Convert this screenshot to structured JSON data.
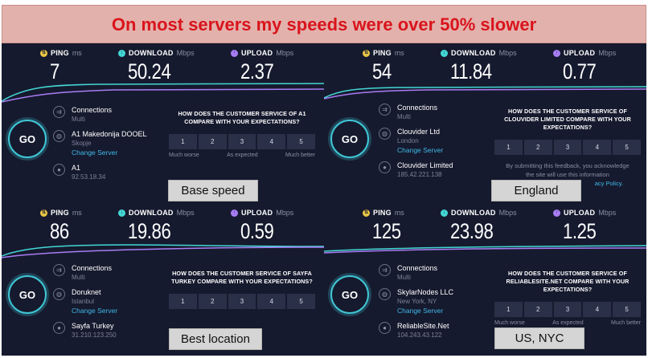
{
  "banner": {
    "title": "On most servers my speeds were over 50% slower"
  },
  "labels": {
    "ping": "PING",
    "ping_unit": "ms",
    "download": "DOWNLOAD",
    "download_unit": "Mbps",
    "upload": "UPLOAD",
    "upload_unit": "Mbps",
    "go": "GO",
    "connections": "Connections",
    "multi": "Multi",
    "change_server": "Change Server",
    "much_worse": "Much worse",
    "as_expected": "As expected",
    "much_better": "Much better",
    "ratings": [
      "1",
      "2",
      "3",
      "4",
      "5"
    ]
  },
  "panels": [
    {
      "ping": "7",
      "download": "50.24",
      "upload": "2.37",
      "isp": "A1 Makedonija DOOEL",
      "isp_location": "Skopje",
      "server": "Skopje",
      "host": "A1",
      "host_ip": "92.53.18.34",
      "question": "HOW DOES THE CUSTOMER SERVICE OF A1 COMPARE WITH YOUR EXPECTATIONS?",
      "caption": "Base speed"
    },
    {
      "ping": "54",
      "download": "11.84",
      "upload": "0.77",
      "isp": "Clouvider Ltd",
      "isp_location": "London",
      "host": "Clouvider Limited",
      "host_ip": "185.42.221.138",
      "question": "HOW DOES THE CUSTOMER SERVICE OF CLOUVIDER LIMITED COMPARE WITH YOUR EXPECTATIONS?",
      "feedback": "By submitting this feedback, you acknowledge",
      "feedback2": "the site will use this information",
      "feedback_link": "acy Policy.",
      "caption": "England"
    },
    {
      "ping": "86",
      "download": "19.86",
      "upload": "0.59",
      "isp": "Doruknet",
      "isp_location": "Istanbul",
      "host": "Sayfa Turkey",
      "host_ip": "31.210.123.250",
      "question": "HOW DOES THE CUSTOMER SERVICE OF SAYFA TURKEY COMPARE WITH YOUR EXPECTATIONS?",
      "caption": "Best location"
    },
    {
      "ping": "125",
      "download": "23.98",
      "upload": "1.25",
      "isp": "SkylarNodes LLC",
      "isp_location": "New York, NY",
      "host": "ReliableSite.Net",
      "host_ip": "104.243.43.122",
      "question": "HOW DOES THE CUSTOMER SERVICE OF RELIABLESITE.NET COMPARE WITH YOUR EXPECTATIONS?",
      "caption": "US, NYC"
    }
  ],
  "colors": {
    "panel_bg": "#161a2e",
    "download": "#43d7d4",
    "upload": "#a87df4",
    "ping": "#e8c546",
    "link": "#3fb9e9",
    "banner_text": "#d9141c"
  }
}
